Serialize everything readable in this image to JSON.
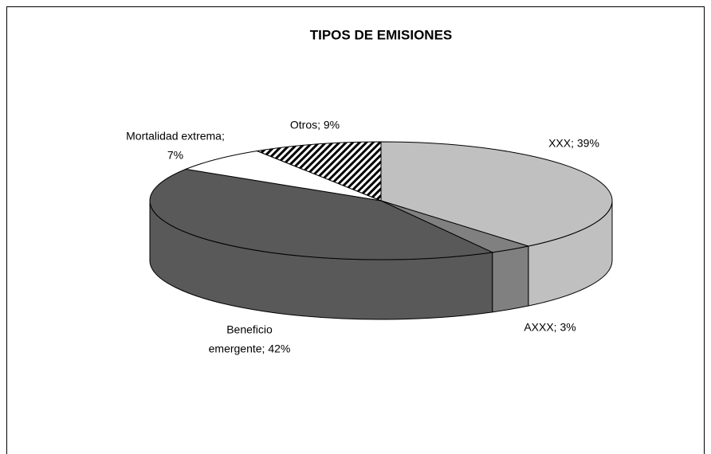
{
  "chart_data": {
    "type": "pie",
    "title": "TIPOS DE EMISIONES",
    "values": [
      39,
      3,
      42,
      7,
      9
    ],
    "value_labels": [
      [
        "XXX; 39%"
      ],
      [
        "AXXX; 3%"
      ],
      [
        "Beneficio",
        "emergente; 42%"
      ],
      [
        "Mortalidad extrema;",
        "7%"
      ],
      [
        "Otros; 9%"
      ]
    ],
    "colors": [
      "#c0c0c0",
      "#808080",
      "#595959",
      "#ffffff",
      "#000000"
    ],
    "hatched": [
      false,
      false,
      false,
      false,
      true
    ]
  }
}
